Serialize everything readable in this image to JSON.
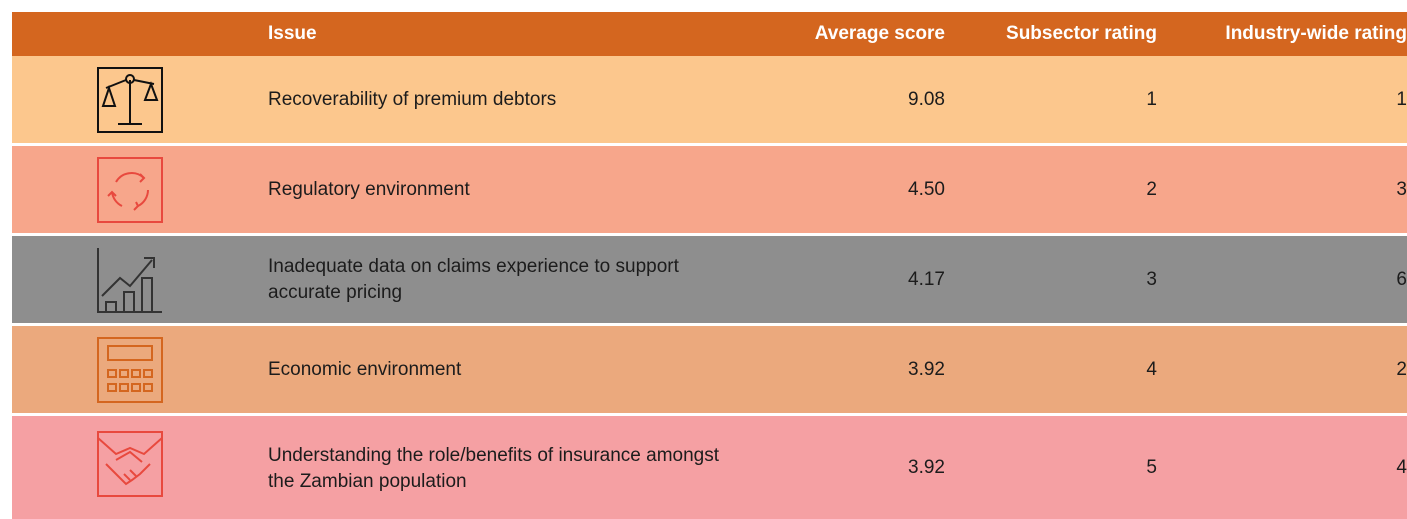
{
  "table": {
    "header": [
      "Issue",
      "Average score",
      "Subsector rating",
      "Industry-wide rating"
    ],
    "rows": [
      [
        "Recoverability of premium debtors",
        "9.08",
        1,
        1
      ],
      [
        "Regulatory environment",
        "4.50",
        2,
        3
      ],
      [
        "Inadequate data on claims experience to support accurate pricing",
        "4.17",
        3,
        6
      ],
      [
        "Economic environment",
        "3.92",
        4,
        2
      ],
      [
        "Understanding the role/benefits of insurance amongst the Zambian population",
        "3.92",
        5,
        4
      ]
    ]
  }
}
